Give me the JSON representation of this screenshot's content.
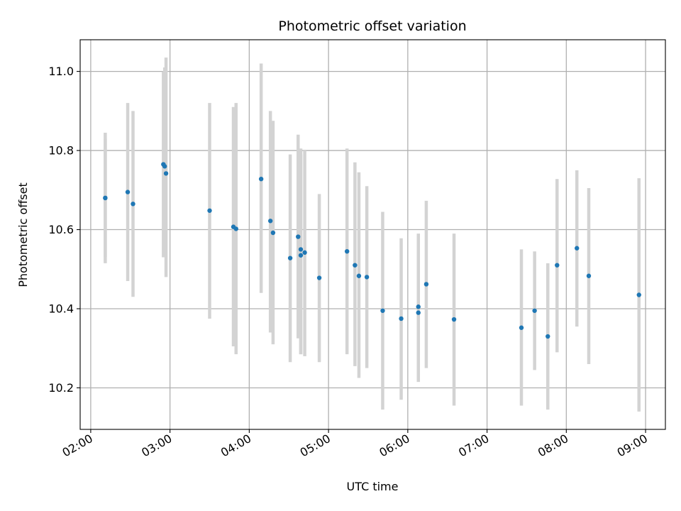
{
  "chart_data": {
    "type": "scatter",
    "title": "Photometric offset variation",
    "xlabel": "UTC time",
    "ylabel": "Photometric offset",
    "xlim": [
      "01:52",
      "09:15"
    ],
    "ylim": [
      10.095,
      11.08
    ],
    "grid": true,
    "x_ticks": [
      "02:00",
      "03:00",
      "04:00",
      "05:00",
      "06:00",
      "07:00",
      "08:00",
      "09:00"
    ],
    "y_ticks": [
      "10.2",
      "10.4",
      "10.6",
      "10.8",
      "11.0"
    ],
    "colors": {
      "point": "#1f77b4",
      "errorbar": "#d3d3d3",
      "grid": "#b0b0b0"
    },
    "series": [
      {
        "points": [
          {
            "x": "02:11",
            "y": 10.68,
            "lo": 10.515,
            "hi": 10.845
          },
          {
            "x": "02:11",
            "y": 10.68,
            "lo": 10.53,
            "hi": 10.83
          },
          {
            "x": "02:28",
            "y": 10.695,
            "lo": 10.47,
            "hi": 10.92
          },
          {
            "x": "02:32",
            "y": 10.665,
            "lo": 10.43,
            "hi": 10.9
          },
          {
            "x": "02:55",
            "y": 10.765,
            "lo": 10.53,
            "hi": 11.0
          },
          {
            "x": "02:56",
            "y": 10.76,
            "lo": 10.53,
            "hi": 11.01
          },
          {
            "x": "02:57",
            "y": 10.742,
            "lo": 10.48,
            "hi": 11.035
          },
          {
            "x": "03:30",
            "y": 10.648,
            "lo": 10.375,
            "hi": 10.92
          },
          {
            "x": "03:48",
            "y": 10.607,
            "lo": 10.305,
            "hi": 10.91
          },
          {
            "x": "03:50",
            "y": 10.602,
            "lo": 10.285,
            "hi": 10.92
          },
          {
            "x": "04:09",
            "y": 10.728,
            "lo": 10.44,
            "hi": 11.02
          },
          {
            "x": "04:16",
            "y": 10.622,
            "lo": 10.34,
            "hi": 10.9
          },
          {
            "x": "04:18",
            "y": 10.592,
            "lo": 10.31,
            "hi": 10.875
          },
          {
            "x": "04:31",
            "y": 10.528,
            "lo": 10.265,
            "hi": 10.79
          },
          {
            "x": "04:37",
            "y": 10.582,
            "lo": 10.325,
            "hi": 10.84
          },
          {
            "x": "04:39",
            "y": 10.55,
            "lo": 10.285,
            "hi": 10.805
          },
          {
            "x": "04:39",
            "y": 10.535,
            "lo": 10.285,
            "hi": 10.79
          },
          {
            "x": "04:42",
            "y": 10.542,
            "lo": 10.28,
            "hi": 10.8
          },
          {
            "x": "04:53",
            "y": 10.478,
            "lo": 10.265,
            "hi": 10.69
          },
          {
            "x": "05:14",
            "y": 10.545,
            "lo": 10.285,
            "hi": 10.805
          },
          {
            "x": "05:20",
            "y": 10.51,
            "lo": 10.255,
            "hi": 10.77
          },
          {
            "x": "05:23",
            "y": 10.483,
            "lo": 10.225,
            "hi": 10.745
          },
          {
            "x": "05:29",
            "y": 10.48,
            "lo": 10.25,
            "hi": 10.71
          },
          {
            "x": "05:41",
            "y": 10.395,
            "lo": 10.145,
            "hi": 10.645
          },
          {
            "x": "05:55",
            "y": 10.375,
            "lo": 10.17,
            "hi": 10.578
          },
          {
            "x": "06:08",
            "y": 10.39,
            "lo": 10.225,
            "hi": 10.56
          },
          {
            "x": "06:08",
            "y": 10.405,
            "lo": 10.215,
            "hi": 10.59
          },
          {
            "x": "06:14",
            "y": 10.462,
            "lo": 10.25,
            "hi": 10.673
          },
          {
            "x": "06:35",
            "y": 10.373,
            "lo": 10.155,
            "hi": 10.59
          },
          {
            "x": "07:26",
            "y": 10.352,
            "lo": 10.155,
            "hi": 10.55
          },
          {
            "x": "07:36",
            "y": 10.395,
            "lo": 10.245,
            "hi": 10.545
          },
          {
            "x": "07:46",
            "y": 10.33,
            "lo": 10.145,
            "hi": 10.515
          },
          {
            "x": "07:53",
            "y": 10.51,
            "lo": 10.29,
            "hi": 10.728
          },
          {
            "x": "08:08",
            "y": 10.553,
            "lo": 10.355,
            "hi": 10.75
          },
          {
            "x": "08:17",
            "y": 10.483,
            "lo": 10.26,
            "hi": 10.705
          },
          {
            "x": "08:55",
            "y": 10.435,
            "lo": 10.14,
            "hi": 10.73
          }
        ]
      }
    ]
  }
}
